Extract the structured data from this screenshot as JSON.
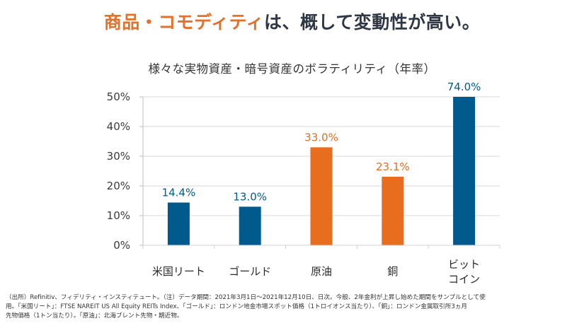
{
  "headline": {
    "accent": "商品・コモディティ",
    "rest": "は、概して変動性が高い。"
  },
  "colors": {
    "accent_orange": "#e86d1f",
    "blue": "#005a8c",
    "headline_dark": "#2f3745",
    "grid": "#d9d9d9"
  },
  "chart_data": {
    "type": "bar",
    "title": "様々な実物資産・暗号資産のボラティリティ（年率）",
    "xlabel": "",
    "ylabel": "",
    "categories": [
      "米国リート",
      "ゴールド",
      "原油",
      "銅",
      "ビットコイン"
    ],
    "category_lines": [
      [
        "米国リート"
      ],
      [
        "ゴールド"
      ],
      [
        "原油"
      ],
      [
        "銅"
      ],
      [
        "ビット",
        "コイン"
      ]
    ],
    "values": [
      14.4,
      13.0,
      33.0,
      23.1,
      74.0
    ],
    "data_labels": [
      "14.4%",
      "13.0%",
      "33.0%",
      "23.1%",
      "74.0%"
    ],
    "bar_colors": [
      "#005a8c",
      "#005a8c",
      "#e86d1f",
      "#e86d1f",
      "#005a8c"
    ],
    "ylim": [
      0,
      50
    ],
    "yticks": [
      0,
      10,
      20,
      30,
      40,
      50
    ],
    "ytick_labels": [
      "0%",
      "10%",
      "20%",
      "30%",
      "40%",
      "50%"
    ],
    "grid": true,
    "legend": "none",
    "note": "ビットコイン bar truncated at axis max (50%) with label 74.0%"
  },
  "footnote": {
    "lines": [
      "（出所）Refinitiv、フィデリティ・インスティテュート。（注）データ期間：2021年3月1日〜2021年12月10日、日次。今般、2年金利が上昇し始めた期間をサンプルとして使",
      "用。「米国リート」：FTSE NAREIT US All Equity REITs Index、「ゴールド」：ロンドン地金市場スポット価格（1トロイオンス当たり）、「銅」：ロンドン金属取引所3ヵ月",
      "先物価格（1トン当たり）。「原油」：北海ブレント先物・期近物。"
    ]
  }
}
